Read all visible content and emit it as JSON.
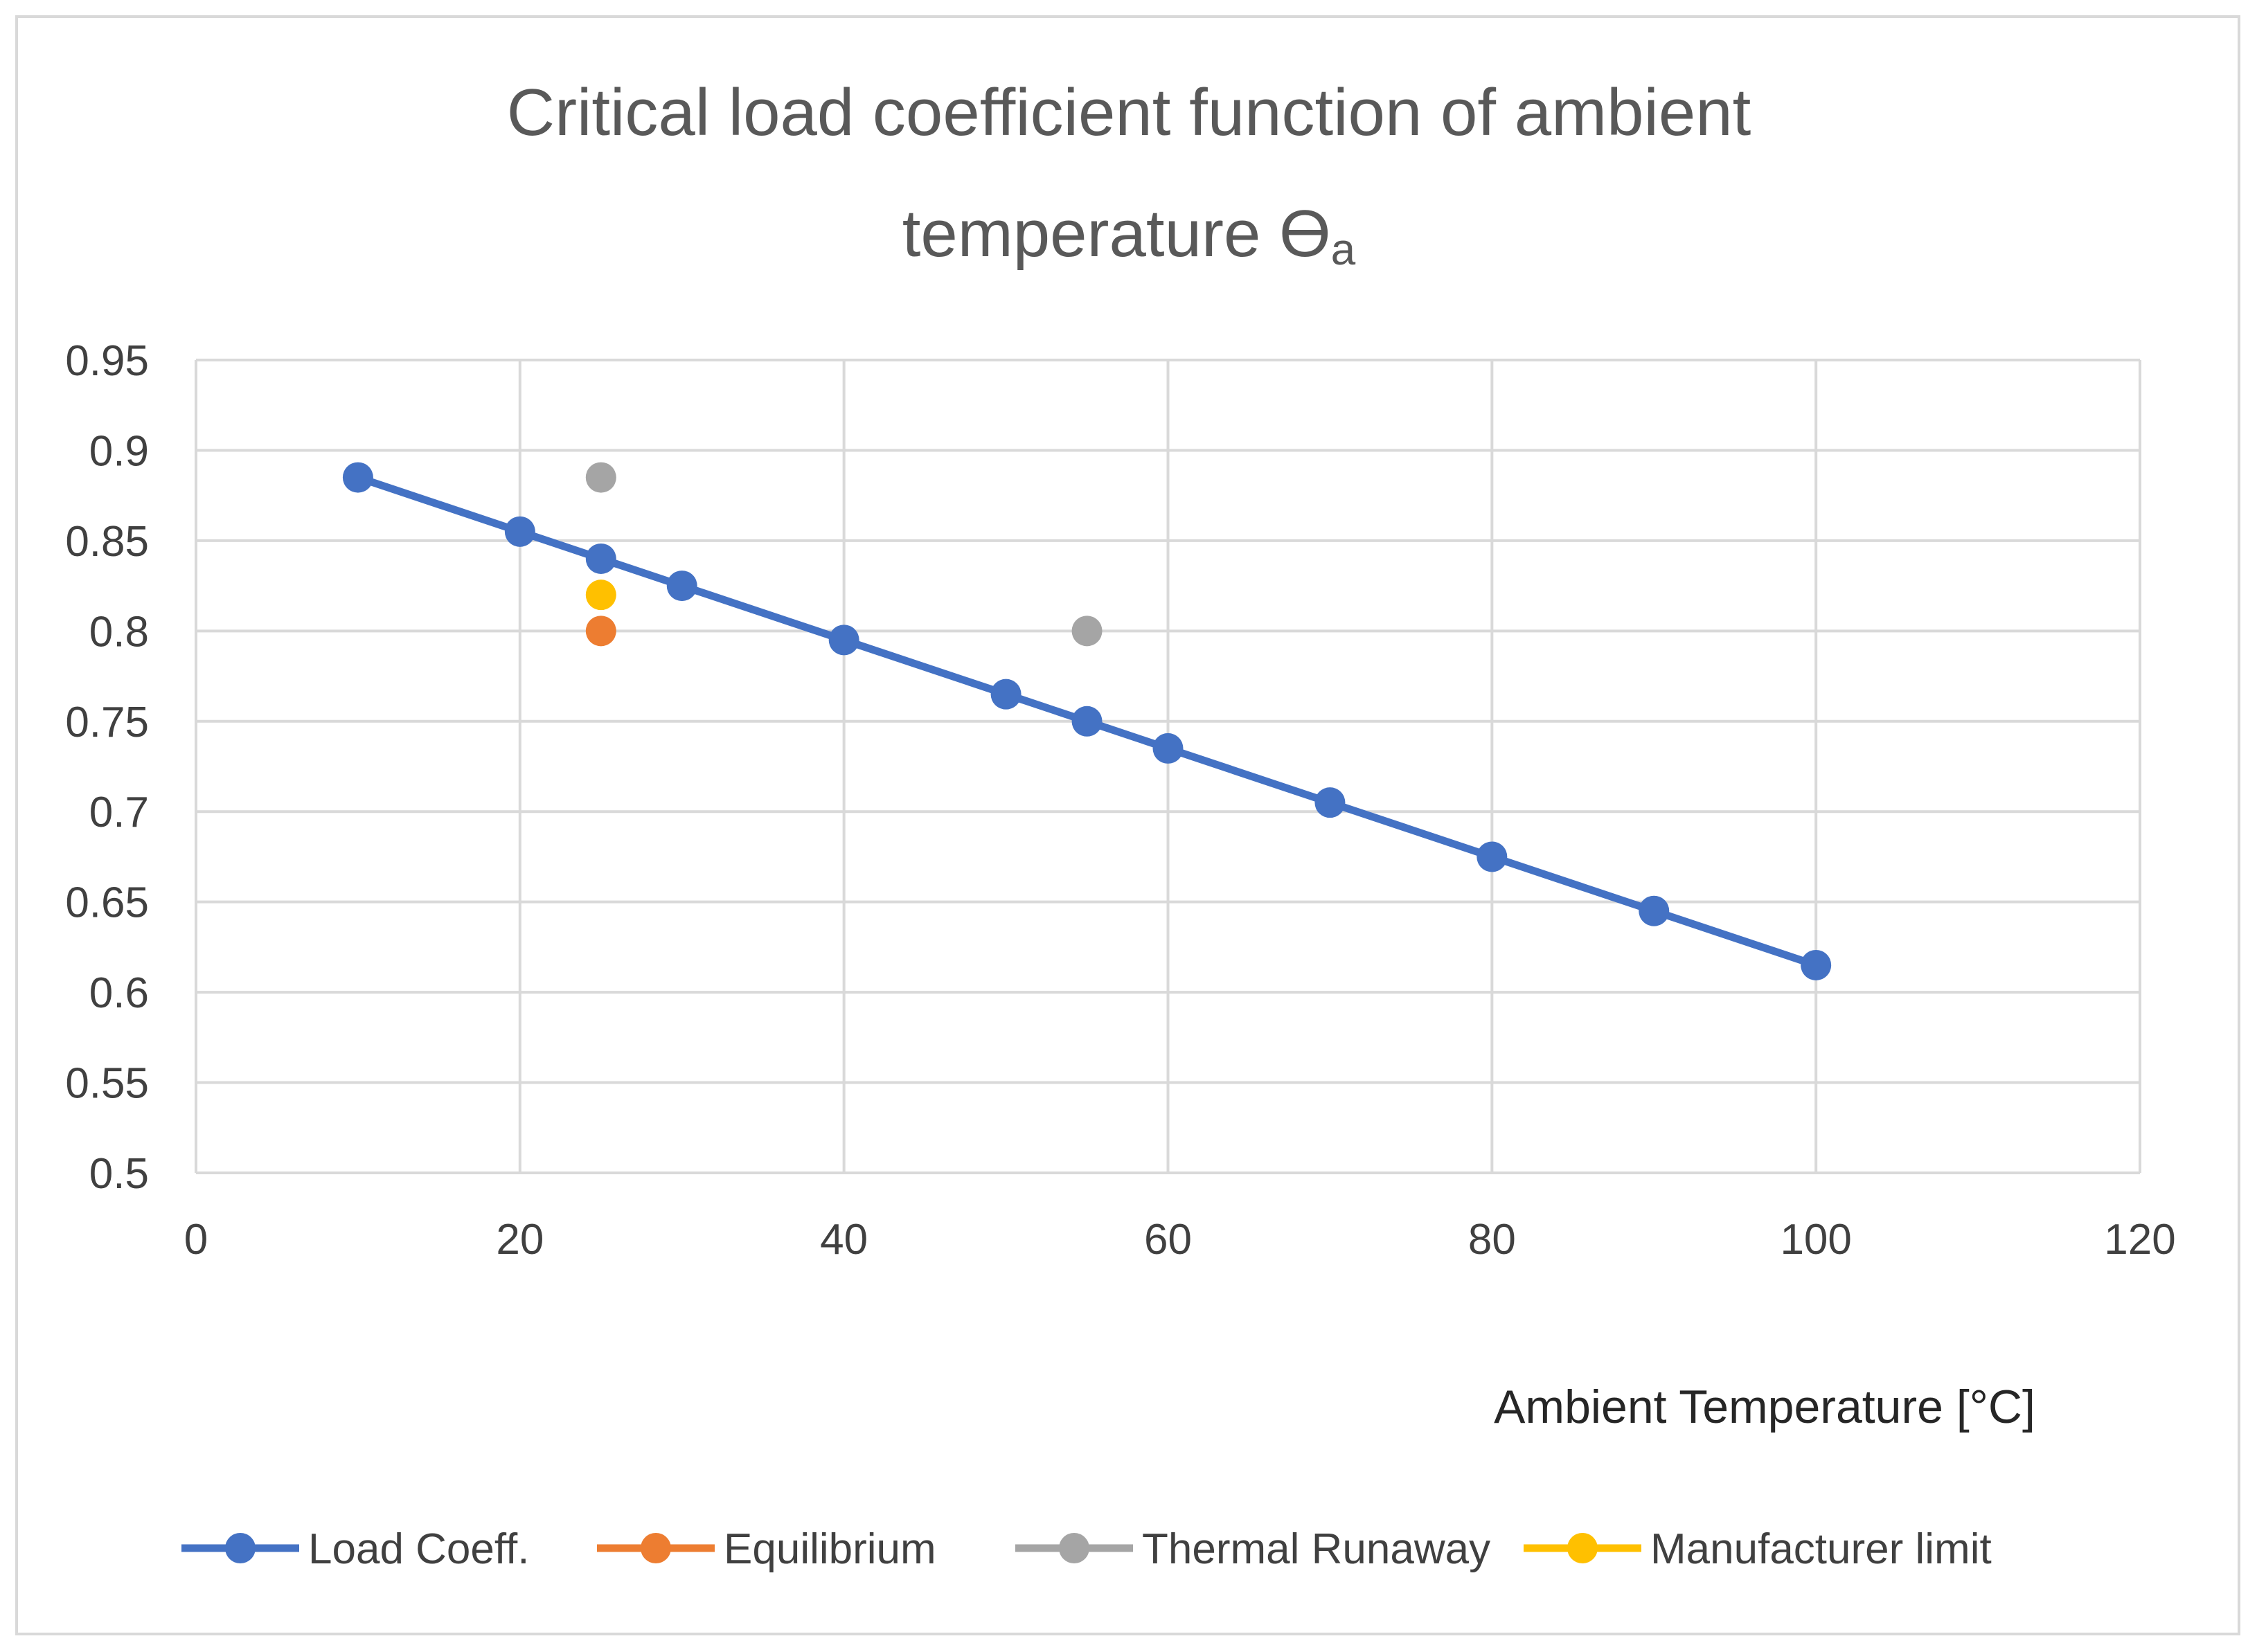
{
  "chart_data": {
    "type": "scatter",
    "title_line1": "Critical load coefficient function of ambient",
    "title_line2": "temperature ϴ",
    "title_subscript": "a",
    "xlabel": "Ambient Temperature [°C]",
    "ylabel": "",
    "xlim": [
      0,
      120
    ],
    "ylim": [
      0.5,
      0.95
    ],
    "x_ticks": [
      "0",
      "20",
      "40",
      "60",
      "80",
      "100",
      "120"
    ],
    "y_ticks": [
      "0.5",
      "0.55",
      "0.6",
      "0.65",
      "0.7",
      "0.75",
      "0.8",
      "0.85",
      "0.9",
      "0.95"
    ],
    "grid": true,
    "legend_position": "bottom",
    "series": [
      {
        "name": "Load Coeff.",
        "color": "#4472c4",
        "line": true,
        "x": [
          10,
          20,
          25,
          30,
          40,
          50,
          55,
          60,
          70,
          80,
          90,
          100
        ],
        "y": [
          0.885,
          0.855,
          0.84,
          0.825,
          0.795,
          0.765,
          0.75,
          0.735,
          0.705,
          0.675,
          0.645,
          0.615
        ]
      },
      {
        "name": "Equilibrium",
        "color": "#ed7d31",
        "line": false,
        "x": [
          25
        ],
        "y": [
          0.8
        ]
      },
      {
        "name": "Thermal Runaway",
        "color": "#a5a5a5",
        "line": false,
        "x": [
          25,
          55
        ],
        "y": [
          0.885,
          0.8
        ]
      },
      {
        "name": "Manufacturer limit",
        "color": "#ffc000",
        "line": false,
        "x": [
          25
        ],
        "y": [
          0.82
        ]
      }
    ]
  }
}
